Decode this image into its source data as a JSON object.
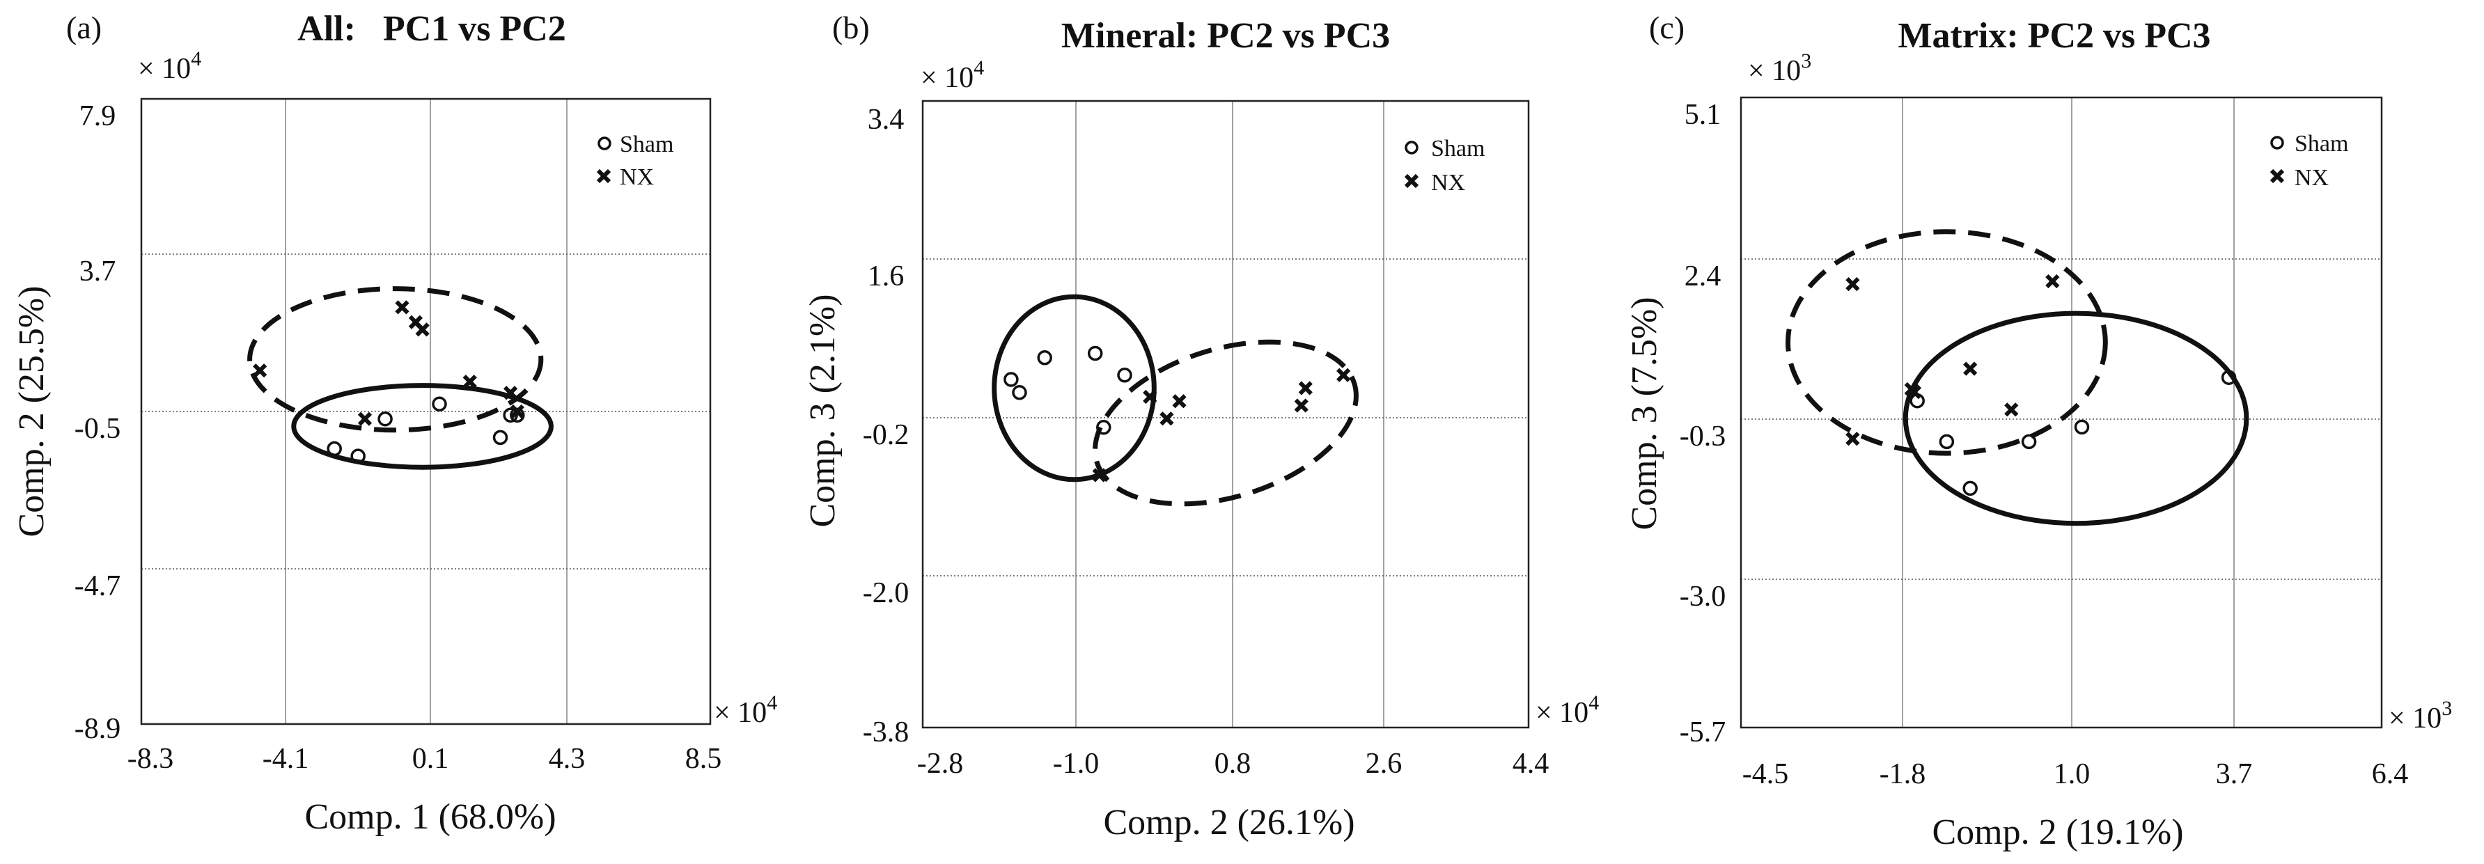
{
  "chart_data": [
    {
      "type": "scatter",
      "panel_label": "(a)",
      "title": "All:   PC1 vs PC2",
      "xlabel": "Comp. 1 (68.0%)",
      "ylabel": "Comp. 2 (25.5%)",
      "x_multiplier": "× 10",
      "x_multiplier_exp": "4",
      "y_multiplier": "× 10",
      "y_multiplier_exp": "4",
      "xlim": [
        -8.3,
        8.5
      ],
      "ylim": [
        -8.9,
        7.9
      ],
      "xticks": [
        -8.3,
        -4.1,
        0.1,
        4.3,
        8.5
      ],
      "xtick_labels": [
        "-8.3",
        "-4.1",
        "0.1",
        "4.3",
        "8.5"
      ],
      "yticks": [
        7.9,
        3.7,
        -0.5,
        -4.7,
        -8.9
      ],
      "ytick_labels": [
        "7.9",
        "3.7",
        "-0.5",
        "-4.7",
        "-8.9"
      ],
      "grid": true,
      "legend_position": "top-right",
      "series": [
        {
          "name": "Sham",
          "marker": "circle",
          "x": [
            -2.6,
            -1.9,
            -1.1,
            0.5,
            2.3,
            2.8,
            2.6
          ],
          "y": [
            -1.5,
            -1.7,
            -0.7,
            -0.3,
            -1.2,
            -0.6,
            -0.6
          ]
        },
        {
          "name": "NX",
          "marker": "x",
          "x": [
            -4.8,
            -1.7,
            -0.6,
            -0.2,
            0.0,
            1.4,
            2.6,
            2.8
          ],
          "y": [
            0.6,
            -0.7,
            2.3,
            1.9,
            1.7,
            0.3,
            0.0,
            -0.5
          ]
        }
      ],
      "ellipses": [
        {
          "group": "NX",
          "style": "dashed",
          "cx": -0.8,
          "cy": 0.9,
          "rx": 4.3,
          "ry": 1.9
        },
        {
          "group": "Sham",
          "style": "solid",
          "cx": 0.0,
          "cy": -0.9,
          "rx": 3.8,
          "ry": 1.1
        }
      ]
    },
    {
      "type": "scatter",
      "panel_label": "(b)",
      "title": "Mineral: PC2 vs PC3",
      "xlabel": "Comp. 2 (26.1%)",
      "ylabel": "Comp. 3 (2.1%)",
      "x_multiplier": "× 10",
      "x_multiplier_exp": "4",
      "y_multiplier": "× 10",
      "y_multiplier_exp": "4",
      "xlim": [
        -2.8,
        4.4
      ],
      "ylim": [
        -3.8,
        3.4
      ],
      "xticks": [
        -2.8,
        -1.0,
        0.8,
        2.6,
        4.4
      ],
      "xtick_labels": [
        "-2.8",
        "-1.0",
        "0.8",
        "2.6",
        "4.4"
      ],
      "yticks": [
        3.4,
        1.6,
        -0.2,
        -2.0,
        -3.8
      ],
      "ytick_labels": [
        "3.4",
        "1.6",
        "-0.2",
        "-2.0",
        "-3.8"
      ],
      "grid": true,
      "legend_position": "top-right",
      "series": [
        {
          "name": "Sham",
          "marker": "circle",
          "x": [
            -1.75,
            -1.65,
            -1.35,
            -0.75,
            -0.65,
            -0.4
          ],
          "y": [
            0.2,
            0.05,
            0.45,
            0.5,
            -0.35,
            0.25
          ]
        },
        {
          "name": "NX",
          "marker": "x",
          "x": [
            -0.7,
            -0.1,
            0.1,
            0.25,
            1.7,
            1.75,
            2.2
          ],
          "y": [
            -0.9,
            0.0,
            -0.25,
            -0.05,
            -0.1,
            0.1,
            0.25
          ]
        },
        {
          "name": "",
          "marker": "none",
          "x": [],
          "y": []
        }
      ],
      "ellipses": [
        {
          "group": "Sham",
          "style": "solid",
          "cx": -1.0,
          "cy": 0.1,
          "rx": 0.95,
          "ry": 1.05
        },
        {
          "group": "NX",
          "style": "dashed",
          "cx": 0.8,
          "cy": -0.3,
          "rx": 1.6,
          "ry": 0.85,
          "angle": -17
        }
      ]
    },
    {
      "type": "scatter",
      "panel_label": "(c)",
      "title": "Matrix: PC2 vs PC3",
      "xlabel": "Comp. 2 (19.1%)",
      "ylabel": "Comp. 3 (7.5%)",
      "x_multiplier": "× 10",
      "x_multiplier_exp": "3",
      "y_multiplier": "× 10",
      "y_multiplier_exp": "3",
      "xlim": [
        -4.5,
        6.4
      ],
      "ylim": [
        -5.7,
        5.1
      ],
      "xticks": [
        -4.5,
        -1.8,
        1.0,
        3.7,
        6.4
      ],
      "xtick_labels": [
        "-4.5",
        "-1.8",
        "1.0",
        "3.7",
        "6.4"
      ],
      "yticks": [
        5.1,
        2.4,
        -0.3,
        -3.0,
        -5.7
      ],
      "ytick_labels": [
        "5.1",
        "2.4",
        "-0.3",
        "-3.0",
        "-5.7"
      ],
      "grid": true,
      "legend_position": "top-right",
      "series": [
        {
          "name": "Sham",
          "marker": "circle",
          "x": [
            -1.5,
            -1.0,
            -0.6,
            0.4,
            1.3,
            3.8
          ],
          "y": [
            -0.1,
            -0.8,
            -1.6,
            -0.8,
            -0.55,
            0.3
          ]
        },
        {
          "name": "NX",
          "marker": "x",
          "x": [
            -2.6,
            -2.6,
            -1.6,
            -1.55,
            -0.6,
            0.1,
            0.8
          ],
          "y": [
            1.9,
            -0.75,
            0.1,
            0.05,
            0.45,
            -0.25,
            1.95
          ]
        }
      ],
      "ellipses": [
        {
          "group": "NX",
          "style": "dashed",
          "cx": -1.0,
          "cy": 0.9,
          "rx": 2.7,
          "ry": 1.9
        },
        {
          "group": "Sham",
          "style": "solid",
          "cx": 1.2,
          "cy": -0.4,
          "rx": 2.9,
          "ry": 1.8
        }
      ]
    }
  ]
}
